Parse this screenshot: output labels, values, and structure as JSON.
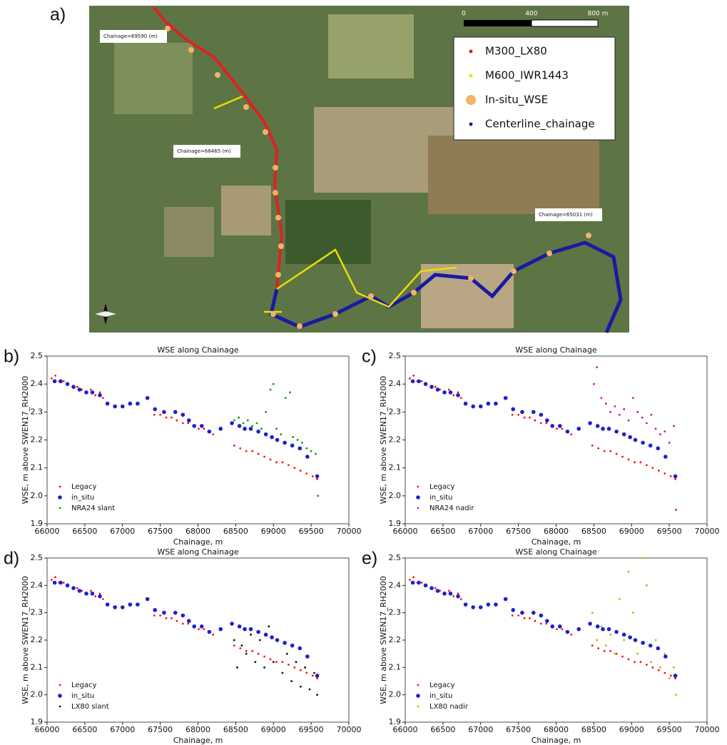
{
  "map": {
    "panel_label": "a)",
    "scale_labels": [
      "0",
      "400",
      "800 m"
    ],
    "legend": [
      {
        "name": "M300_LX80",
        "color": "#e02020"
      },
      {
        "name": "M600_IWR1443",
        "color": "#e8e000"
      },
      {
        "name": "In-situ_WSE",
        "color": "#f2b466"
      },
      {
        "name": "Centerline_chainage",
        "color": "#1a1aa0"
      }
    ],
    "annotations": [
      "Chainage=69590 (m)",
      "Chainage=68465 (m)",
      "Chainage=65031 (m)"
    ]
  },
  "chart_data": [
    {
      "type": "scatter",
      "panel_label": "b)",
      "title": "WSE along Chainage",
      "x_label": "Chainage, m",
      "y_label": "WSE, m above SWEN17_RH2000",
      "xlim": [
        66000,
        70000
      ],
      "ylim": [
        1.9,
        2.5
      ],
      "xticks": [
        66000,
        66500,
        67000,
        67500,
        68000,
        68500,
        69000,
        69500,
        70000
      ],
      "yticks": [
        1.9,
        {
          "value": 2,
          "label": "2.0"
        },
        2.1,
        2.2,
        2.3,
        2.4,
        2.5
      ],
      "series": [
        {
          "name": "Legacy",
          "color": "#ff1010",
          "x": [
            66060,
            66110,
            66160,
            66220,
            66280,
            66340,
            66400,
            66460,
            66520,
            66580,
            66640,
            66700,
            66740,
            67420,
            67500,
            67580,
            67650,
            67720,
            67800,
            67870,
            67940,
            68010,
            68080,
            68150,
            68200,
            68480,
            68560,
            68640,
            68720,
            68800,
            68880,
            68960,
            69040,
            69120,
            69200,
            69280,
            69360,
            69440,
            69520,
            69580
          ],
          "values": [
            2.42,
            2.43,
            2.41,
            2.41,
            2.4,
            2.39,
            2.39,
            2.38,
            2.37,
            2.38,
            2.36,
            2.37,
            2.35,
            2.29,
            2.29,
            2.28,
            2.28,
            2.27,
            2.26,
            2.26,
            2.25,
            2.24,
            2.24,
            2.23,
            2.22,
            2.18,
            2.17,
            2.16,
            2.16,
            2.15,
            2.14,
            2.13,
            2.12,
            2.12,
            2.11,
            2.1,
            2.09,
            2.08,
            2.07,
            2.06
          ]
        },
        {
          "name": "in_situ",
          "color": "#1f1fd0",
          "x": [
            66100,
            66180,
            66270,
            66350,
            66430,
            66520,
            66600,
            66700,
            66800,
            66900,
            67000,
            67100,
            67200,
            67330,
            67430,
            67550,
            67700,
            67800,
            67880,
            67950,
            68050,
            68150,
            68300,
            68450,
            68550,
            68620,
            68700,
            68800,
            68900,
            68980,
            69050,
            69150,
            69250,
            69350,
            69450,
            69580
          ],
          "values": [
            2.41,
            2.41,
            2.4,
            2.39,
            2.38,
            2.37,
            2.37,
            2.36,
            2.33,
            2.32,
            2.32,
            2.33,
            2.33,
            2.35,
            2.31,
            2.3,
            2.3,
            2.29,
            2.27,
            2.25,
            2.25,
            2.23,
            2.24,
            2.26,
            2.25,
            2.24,
            2.24,
            2.23,
            2.22,
            2.21,
            2.2,
            2.19,
            2.18,
            2.17,
            2.14,
            2.07
          ]
        },
        {
          "name": "NRA24 slant",
          "color": "#0c9a0c",
          "x": [
            68480,
            68540,
            68600,
            68660,
            68720,
            68780,
            68840,
            68900,
            68960,
            69000,
            69040,
            69100,
            69160,
            69220,
            69260,
            69320,
            69380,
            69440,
            69500,
            69560,
            69590
          ],
          "values": [
            2.27,
            2.28,
            2.26,
            2.27,
            2.25,
            2.26,
            2.24,
            2.3,
            2.38,
            2.4,
            2.24,
            2.22,
            2.35,
            2.37,
            2.21,
            2.2,
            2.19,
            2.17,
            2.16,
            2.15,
            2.0
          ]
        }
      ]
    },
    {
      "type": "scatter",
      "panel_label": "c)",
      "title": "WSE along Chainage",
      "x_label": "Chainage, m",
      "y_label": "WSE, m above SWEN17_RH2000",
      "xlim": [
        66000,
        70000
      ],
      "ylim": [
        1.9,
        2.5
      ],
      "xticks": [
        66000,
        66500,
        67000,
        67500,
        68000,
        68500,
        69000,
        69500,
        70000
      ],
      "yticks": [
        1.9,
        {
          "value": 2,
          "label": "2.0"
        },
        2.1,
        2.2,
        2.3,
        2.4,
        2.5
      ],
      "series": [
        {
          "name": "Legacy",
          "color": "#ff1010",
          "x": [
            66060,
            66110,
            66160,
            66220,
            66280,
            66340,
            66400,
            66460,
            66520,
            66580,
            66640,
            66700,
            66740,
            67420,
            67500,
            67580,
            67650,
            67720,
            67800,
            67870,
            67940,
            68010,
            68080,
            68150,
            68200,
            68480,
            68560,
            68640,
            68720,
            68800,
            68880,
            68960,
            69040,
            69120,
            69200,
            69280,
            69360,
            69440,
            69520,
            69580
          ],
          "values": [
            2.42,
            2.43,
            2.41,
            2.41,
            2.4,
            2.39,
            2.39,
            2.38,
            2.37,
            2.38,
            2.36,
            2.37,
            2.35,
            2.29,
            2.29,
            2.28,
            2.28,
            2.27,
            2.26,
            2.26,
            2.25,
            2.24,
            2.24,
            2.23,
            2.22,
            2.18,
            2.17,
            2.16,
            2.16,
            2.15,
            2.14,
            2.13,
            2.12,
            2.12,
            2.11,
            2.1,
            2.09,
            2.08,
            2.07,
            2.06
          ]
        },
        {
          "name": "in_situ",
          "color": "#1f1fd0",
          "x": [
            66100,
            66180,
            66270,
            66350,
            66430,
            66520,
            66600,
            66700,
            66800,
            66900,
            67000,
            67100,
            67200,
            67330,
            67430,
            67550,
            67700,
            67800,
            67880,
            67950,
            68050,
            68150,
            68300,
            68450,
            68550,
            68620,
            68700,
            68800,
            68900,
            68980,
            69050,
            69150,
            69250,
            69350,
            69450,
            69580
          ],
          "values": [
            2.41,
            2.41,
            2.4,
            2.39,
            2.38,
            2.37,
            2.37,
            2.36,
            2.33,
            2.32,
            2.32,
            2.33,
            2.33,
            2.35,
            2.31,
            2.3,
            2.3,
            2.29,
            2.27,
            2.25,
            2.25,
            2.23,
            2.24,
            2.26,
            2.25,
            2.24,
            2.24,
            2.23,
            2.22,
            2.21,
            2.2,
            2.19,
            2.18,
            2.17,
            2.14,
            2.07
          ]
        },
        {
          "name": "NRA24 nadir",
          "color": "#c010c0",
          "x": [
            68500,
            68540,
            68600,
            68660,
            68720,
            68780,
            68840,
            68900,
            68960,
            69020,
            69080,
            69140,
            69200,
            69260,
            69320,
            69380,
            69440,
            69500,
            69560,
            69590
          ],
          "values": [
            2.4,
            2.46,
            2.35,
            2.33,
            2.3,
            2.32,
            2.29,
            2.31,
            2.27,
            2.35,
            2.3,
            2.28,
            2.26,
            2.29,
            2.24,
            2.22,
            2.23,
            2.19,
            2.25,
            1.95
          ]
        }
      ]
    },
    {
      "type": "scatter",
      "panel_label": "d)",
      "title": "WSE along Chainage",
      "x_label": "Chainage, m",
      "y_label": "WSE, m above SWEN17_RH2000",
      "xlim": [
        66000,
        70000
      ],
      "ylim": [
        1.9,
        2.5
      ],
      "xticks": [
        66000,
        66500,
        67000,
        67500,
        68000,
        68500,
        69000,
        69500,
        70000
      ],
      "yticks": [
        1.9,
        {
          "value": 2,
          "label": "2.0"
        },
        2.1,
        2.2,
        2.3,
        2.4,
        2.5
      ],
      "series": [
        {
          "name": "Legacy",
          "color": "#ff1010",
          "x": [
            66060,
            66110,
            66160,
            66220,
            66280,
            66340,
            66400,
            66460,
            66520,
            66580,
            66640,
            66700,
            66740,
            67420,
            67500,
            67580,
            67650,
            67720,
            67800,
            67870,
            67940,
            68010,
            68080,
            68150,
            68200,
            68480,
            68560,
            68640,
            68720,
            68800,
            68880,
            68960,
            69040,
            69120,
            69200,
            69280,
            69360,
            69440,
            69520,
            69580
          ],
          "values": [
            2.42,
            2.43,
            2.41,
            2.41,
            2.4,
            2.39,
            2.39,
            2.38,
            2.37,
            2.38,
            2.36,
            2.37,
            2.35,
            2.29,
            2.29,
            2.28,
            2.28,
            2.27,
            2.26,
            2.26,
            2.25,
            2.24,
            2.24,
            2.23,
            2.22,
            2.18,
            2.17,
            2.16,
            2.16,
            2.15,
            2.14,
            2.13,
            2.12,
            2.12,
            2.11,
            2.1,
            2.09,
            2.08,
            2.07,
            2.06
          ]
        },
        {
          "name": "in_situ",
          "color": "#1f1fd0",
          "x": [
            66100,
            66180,
            66270,
            66350,
            66430,
            66520,
            66600,
            66700,
            66800,
            66900,
            67000,
            67100,
            67200,
            67330,
            67430,
            67550,
            67700,
            67800,
            67880,
            67950,
            68050,
            68150,
            68300,
            68450,
            68550,
            68620,
            68700,
            68800,
            68900,
            68980,
            69050,
            69150,
            69250,
            69350,
            69450,
            69580
          ],
          "values": [
            2.41,
            2.41,
            2.4,
            2.39,
            2.38,
            2.37,
            2.37,
            2.36,
            2.33,
            2.32,
            2.32,
            2.33,
            2.33,
            2.35,
            2.31,
            2.3,
            2.3,
            2.29,
            2.27,
            2.25,
            2.25,
            2.23,
            2.24,
            2.26,
            2.25,
            2.24,
            2.24,
            2.23,
            2.22,
            2.21,
            2.2,
            2.19,
            2.18,
            2.17,
            2.14,
            2.07
          ]
        },
        {
          "name": "LX80 slant",
          "color": "#111111",
          "x": [
            68480,
            68520,
            68580,
            68640,
            68700,
            68760,
            68820,
            68880,
            68940,
            69000,
            69060,
            69120,
            69180,
            69240,
            69300,
            69360,
            69420,
            69480,
            69540,
            69580
          ],
          "values": [
            2.2,
            2.1,
            2.18,
            2.15,
            2.22,
            2.12,
            2.2,
            2.1,
            2.25,
            2.12,
            2.2,
            2.08,
            2.15,
            2.05,
            2.12,
            2.03,
            2.1,
            2.02,
            2.08,
            2.0
          ]
        }
      ]
    },
    {
      "type": "scatter",
      "panel_label": "e)",
      "title": "WSE along Chainage",
      "x_label": "Chainage, m",
      "y_label": "WSE, m above SWEN17_RH2000",
      "xlim": [
        66000,
        70000
      ],
      "ylim": [
        1.9,
        2.5
      ],
      "xticks": [
        66000,
        66500,
        67000,
        67500,
        68000,
        68500,
        69000,
        69500,
        70000
      ],
      "yticks": [
        1.9,
        {
          "value": 2,
          "label": "2.0"
        },
        2.1,
        2.2,
        2.3,
        2.4,
        2.5
      ],
      "series": [
        {
          "name": "Legacy",
          "color": "#ff1010",
          "x": [
            66060,
            66110,
            66160,
            66220,
            66280,
            66340,
            66400,
            66460,
            66520,
            66580,
            66640,
            66700,
            66740,
            67420,
            67500,
            67580,
            67650,
            67720,
            67800,
            67870,
            67940,
            68010,
            68080,
            68150,
            68200,
            68480,
            68560,
            68640,
            68720,
            68800,
            68880,
            68960,
            69040,
            69120,
            69200,
            69280,
            69360,
            69440,
            69520,
            69580
          ],
          "values": [
            2.42,
            2.43,
            2.41,
            2.41,
            2.4,
            2.39,
            2.39,
            2.38,
            2.37,
            2.38,
            2.36,
            2.37,
            2.35,
            2.29,
            2.29,
            2.28,
            2.28,
            2.27,
            2.26,
            2.26,
            2.25,
            2.24,
            2.24,
            2.23,
            2.22,
            2.18,
            2.17,
            2.16,
            2.16,
            2.15,
            2.14,
            2.13,
            2.12,
            2.12,
            2.11,
            2.1,
            2.09,
            2.08,
            2.07,
            2.06
          ]
        },
        {
          "name": "in_situ",
          "color": "#1f1fd0",
          "x": [
            66100,
            66180,
            66270,
            66350,
            66430,
            66520,
            66600,
            66700,
            66800,
            66900,
            67000,
            67100,
            67200,
            67330,
            67430,
            67550,
            67700,
            67800,
            67880,
            67950,
            68050,
            68150,
            68300,
            68450,
            68550,
            68620,
            68700,
            68800,
            68900,
            68980,
            69050,
            69150,
            69250,
            69350,
            69450,
            69580
          ],
          "values": [
            2.41,
            2.41,
            2.4,
            2.39,
            2.38,
            2.37,
            2.37,
            2.36,
            2.33,
            2.32,
            2.32,
            2.33,
            2.33,
            2.35,
            2.31,
            2.3,
            2.3,
            2.29,
            2.27,
            2.25,
            2.25,
            2.23,
            2.24,
            2.26,
            2.25,
            2.24,
            2.24,
            2.23,
            2.22,
            2.21,
            2.2,
            2.19,
            2.18,
            2.17,
            2.14,
            2.07
          ]
        },
        {
          "name": "LX80 nadir",
          "color": "#b5b500",
          "x": [
            68480,
            68540,
            68600,
            68660,
            68720,
            68780,
            68840,
            68900,
            68960,
            69020,
            69080,
            69140,
            69200,
            69260,
            69320,
            69380,
            69440,
            69500,
            69560,
            69590
          ],
          "values": [
            2.3,
            2.2,
            2.25,
            2.18,
            2.22,
            2.15,
            2.35,
            2.2,
            2.45,
            2.3,
            2.15,
            2.5,
            2.4,
            2.12,
            2.2,
            2.1,
            2.15,
            2.06,
            2.1,
            2.0
          ]
        }
      ]
    }
  ]
}
